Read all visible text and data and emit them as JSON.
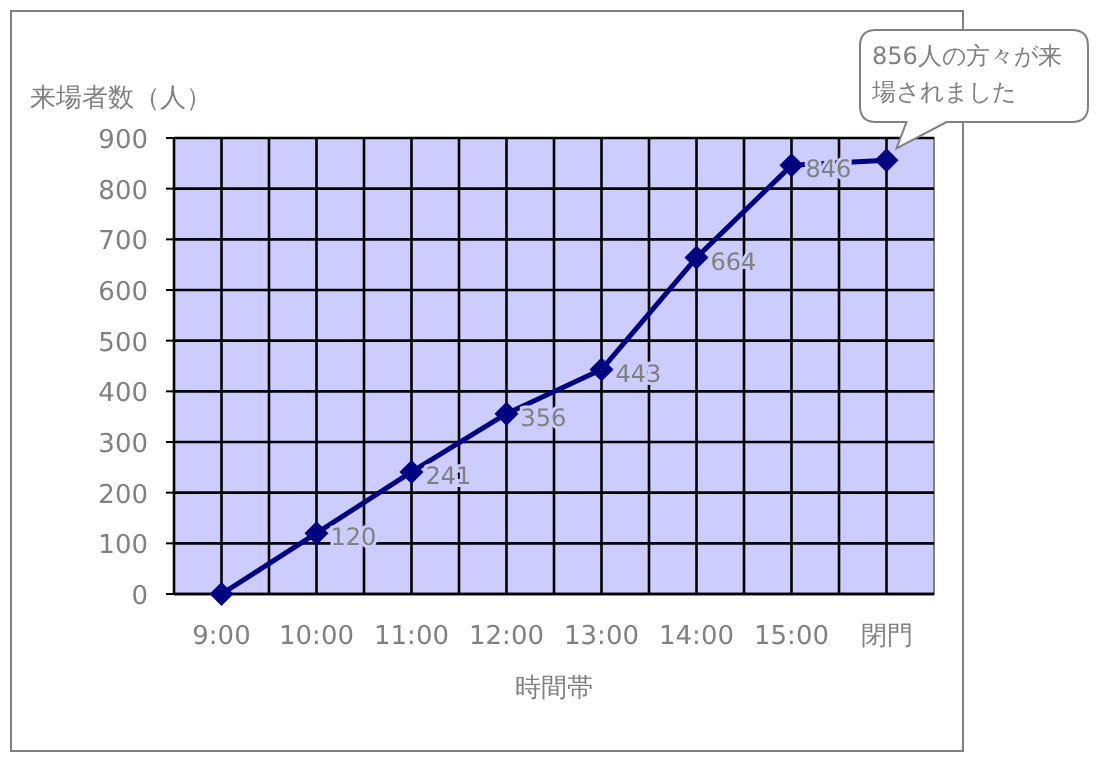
{
  "chart_data": {
    "type": "line",
    "ylabel": "来場者数（人）",
    "xlabel": "時間帯",
    "categories": [
      "9:00",
      "10:00",
      "11:00",
      "12:00",
      "13:00",
      "14:00",
      "15:00",
      "閉門"
    ],
    "series": [
      {
        "color": "#000080",
        "values": [
          0,
          120,
          241,
          356,
          443,
          664,
          846,
          856
        ],
        "value_labels": [
          null,
          "120",
          "241",
          "356",
          "443",
          "664",
          "846",
          null
        ]
      }
    ],
    "ylim": [
      0,
      900
    ],
    "yticks": [
      0,
      100,
      200,
      300,
      400,
      500,
      600,
      700,
      800,
      900
    ],
    "grid": true,
    "marker": "diamond",
    "line_style": "solid",
    "annotations": [
      {
        "text": "856人の方々が来場されました",
        "x": "閉門",
        "y": 856
      }
    ]
  }
}
